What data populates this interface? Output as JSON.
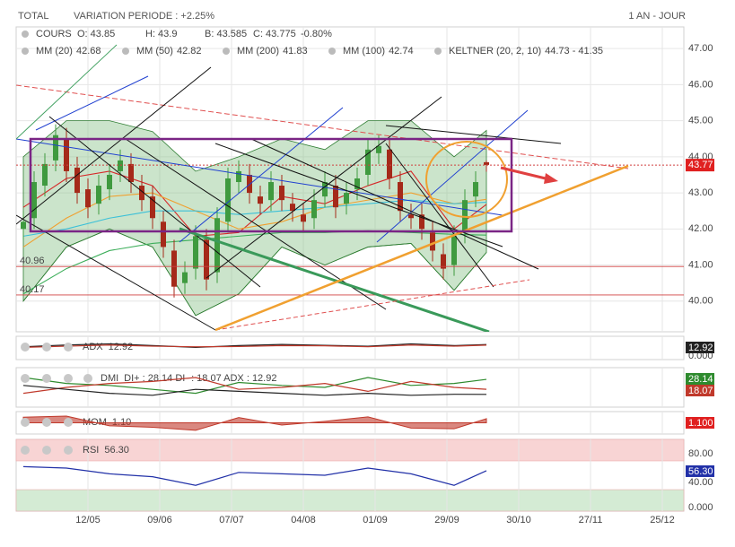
{
  "header": {
    "symbol": "TOTAL",
    "variation": "VARIATION PERIODE : +2.25%",
    "period": "1 AN - JOUR"
  },
  "chart_data": [
    {
      "type": "candlestick",
      "legend": {
        "label": "COURS",
        "open": "O: 43.85",
        "high": "H: 43.9",
        "low": "B: 43.585",
        "close": "C: 43.775",
        "change": "-0.80%"
      },
      "xlim": [
        0,
        186
      ],
      "xticks": [
        {
          "value": 20,
          "label": "12/05"
        },
        {
          "value": 40,
          "label": "09/06"
        },
        {
          "value": 60,
          "label": "07/07"
        },
        {
          "value": 80,
          "label": "04/08"
        },
        {
          "value": 100,
          "label": "01/09"
        },
        {
          "value": 120,
          "label": "29/09"
        },
        {
          "value": 140,
          "label": "30/10"
        },
        {
          "value": 160,
          "label": "27/11"
        },
        {
          "value": 180,
          "label": "25/12"
        }
      ],
      "ylim": [
        39.15,
        47.6
      ],
      "yticks": [
        {
          "value": 40,
          "label": "40.00"
        },
        {
          "value": 41,
          "label": "41.00"
        },
        {
          "value": 42,
          "label": "42.00"
        },
        {
          "value": 43,
          "label": "43.00"
        },
        {
          "value": 44,
          "label": "44.00"
        },
        {
          "value": 45,
          "label": "45.00"
        },
        {
          "value": 46,
          "label": "46.00"
        },
        {
          "value": 47,
          "label": "47.00"
        }
      ],
      "grid": true,
      "up_color": "#3f9a3f",
      "down_color": "#a52a1a",
      "x": [
        2,
        5,
        8,
        11,
        14,
        17,
        20,
        23,
        26,
        29,
        32,
        35,
        38,
        41,
        44,
        47,
        50,
        53,
        56,
        59,
        62,
        65,
        68,
        71,
        74,
        77,
        80,
        83,
        86,
        89,
        92,
        95,
        98,
        101,
        104,
        107,
        110,
        113,
        116,
        119,
        122,
        125,
        128,
        131
      ],
      "open": [
        42.0,
        42.3,
        43.2,
        43.9,
        44.5,
        43.7,
        43.1,
        42.7,
        43.1,
        43.6,
        43.8,
        43.2,
        42.9,
        42.2,
        41.4,
        40.5,
        40.9,
        41.7,
        40.8,
        42.2,
        43.3,
        43.5,
        42.9,
        42.8,
        43.2,
        42.7,
        42.4,
        42.3,
        42.9,
        43.2,
        42.7,
        43.1,
        43.5,
        44.1,
        44.2,
        43.3,
        42.4,
        42.4,
        41.9,
        41.3,
        41.0,
        41.9,
        42.9,
        43.85
      ],
      "high": [
        42.5,
        43.6,
        44.1,
        44.9,
        44.8,
        44.0,
        43.4,
        43.5,
        43.8,
        44.2,
        44.1,
        43.5,
        43.2,
        42.5,
        41.7,
        41.1,
        42.1,
        42.0,
        42.6,
        43.7,
        43.9,
        43.8,
        43.2,
        43.6,
        43.5,
        43.0,
        42.7,
        43.1,
        43.6,
        43.5,
        43.3,
        43.7,
        44.5,
        44.6,
        44.5,
        43.6,
        42.7,
        42.7,
        42.2,
        41.6,
        42.1,
        43.1,
        43.6,
        43.9
      ],
      "low": [
        41.7,
        42.0,
        42.9,
        43.6,
        43.3,
        42.7,
        42.3,
        42.4,
        42.8,
        43.3,
        43.0,
        42.5,
        42.0,
        41.2,
        40.1,
        40.2,
        40.6,
        40.3,
        40.5,
        41.9,
        43.0,
        42.7,
        42.4,
        42.5,
        42.5,
        42.2,
        41.9,
        42.0,
        42.6,
        42.3,
        42.4,
        42.8,
        43.2,
        43.8,
        43.1,
        42.2,
        42.0,
        41.7,
        41.1,
        40.6,
        40.7,
        41.6,
        42.6,
        43.585
      ],
      "close": [
        42.2,
        43.3,
        43.8,
        44.6,
        43.6,
        43.0,
        42.6,
        43.2,
        43.5,
        43.9,
        43.3,
        42.8,
        42.3,
        41.5,
        40.4,
        40.8,
        41.8,
        40.6,
        42.3,
        43.4,
        43.6,
        43.0,
        42.7,
        43.3,
        42.8,
        42.5,
        42.2,
        42.8,
        43.3,
        42.6,
        43.0,
        43.4,
        44.2,
        44.3,
        43.4,
        42.5,
        42.3,
        42.0,
        41.4,
        40.9,
        41.8,
        42.8,
        43.3,
        43.775
      ],
      "overlays": {
        "x": [
          2,
          14,
          26,
          38,
          50,
          62,
          74,
          86,
          98,
          110,
          122,
          131
        ],
        "keltner": {
          "name": "KELTNER (20, 2, 10)",
          "value_label": "44.73 - 41.35",
          "color": "#2e7d32",
          "fill": "#8bc48b",
          "upper": [
            44.0,
            45.0,
            45.0,
            44.7,
            43.6,
            44.0,
            44.5,
            44.2,
            45.0,
            45.0,
            44.0,
            44.73
          ],
          "lower": [
            40.0,
            41.5,
            42.0,
            41.5,
            39.6,
            40.2,
            41.5,
            41.0,
            41.5,
            41.6,
            40.3,
            41.35
          ]
        },
        "series": [
          {
            "name": "MM (20)",
            "value_label": "42.68",
            "color": "#d62728",
            "values": [
              42.6,
              43.4,
              43.6,
              43.2,
              41.8,
              41.9,
              42.9,
              42.7,
              43.2,
              43.6,
              42.0,
              42.68
            ]
          },
          {
            "name": "MM (50)",
            "value_label": "42.82",
            "color": "#f0a030",
            "values": [
              41.5,
              42.3,
              42.9,
              43.0,
              42.5,
              42.0,
              42.2,
              42.6,
              42.8,
              43.0,
              42.7,
              42.82
            ]
          },
          {
            "name": "MM (200)",
            "value_label": "41.83",
            "color": "#3cae5a",
            "values": [
              40.2,
              40.9,
              41.4,
              41.6,
              41.7,
              41.8,
              41.9,
              41.9,
              41.95,
              41.9,
              41.85,
              41.83
            ]
          },
          {
            "name": "MM (100)",
            "value_label": "42.74",
            "color": "#3cc0d8",
            "values": [
              41.8,
              42.0,
              42.3,
              42.5,
              42.5,
              42.4,
              42.5,
              42.6,
              42.7,
              42.8,
              42.7,
              42.74
            ]
          }
        ]
      },
      "levels": [
        {
          "value": 40.96,
          "label": "40.96"
        },
        {
          "value": 40.17,
          "label": "40.17"
        }
      ],
      "last": {
        "value": 43.77,
        "label": "43.77"
      }
    },
    {
      "type": "line",
      "title": "ADX",
      "value_label": "12.92",
      "ylim": [
        0,
        20
      ],
      "yticks": [
        {
          "value": 0,
          "label": "0.000"
        }
      ],
      "x": [
        2,
        14,
        26,
        38,
        50,
        62,
        74,
        86,
        98,
        110,
        122,
        131
      ],
      "series": [
        {
          "name": "ADX",
          "color": "#222222",
          "box": "12.92",
          "values": [
            11,
            12.5,
            13.5,
            12,
            10.5,
            12,
            13,
            12.2,
            11.5,
            13.5,
            12,
            12.92
          ]
        },
        {
          "name": "ADX-",
          "color": "#c0392b",
          "values": [
            10.5,
            11.5,
            12.5,
            11.5,
            11,
            11.2,
            12,
            11.8,
            11,
            12.5,
            11.5,
            12.4
          ]
        }
      ]
    },
    {
      "type": "line",
      "title": "DMI",
      "value_label": "DI+ : 28.14  DI- : 18.07  ADX : 12.92",
      "ylim": [
        0,
        40
      ],
      "x": [
        2,
        14,
        26,
        38,
        50,
        62,
        74,
        86,
        98,
        110,
        122,
        131
      ],
      "series": [
        {
          "name": "DI+",
          "color": "#2e8b2e",
          "box": "28.14",
          "values": [
            30,
            24,
            22,
            18,
            14,
            25,
            22,
            20,
            30,
            22,
            24,
            28.14
          ]
        },
        {
          "name": "DI-",
          "color": "#c0392b",
          "box": "18.07",
          "values": [
            14,
            20,
            24,
            26,
            30,
            18,
            20,
            24,
            16,
            26,
            20,
            18.07
          ]
        },
        {
          "name": "ADX",
          "color": "#222222",
          "values": [
            22,
            18,
            14,
            12,
            18,
            16,
            14,
            12,
            14,
            12,
            13,
            12.92
          ]
        }
      ]
    },
    {
      "type": "area",
      "title": "MOM",
      "value_label": "1.10",
      "ylim": [
        -3,
        3
      ],
      "box": "1.100",
      "color": "#c0392b",
      "x": [
        2,
        14,
        26,
        38,
        50,
        62,
        74,
        86,
        98,
        110,
        122,
        131
      ],
      "values": [
        1.5,
        1.8,
        -0.8,
        -1.2,
        -2.0,
        1.4,
        -0.6,
        0.4,
        1.6,
        -1.4,
        -1.6,
        1.1
      ]
    },
    {
      "type": "line",
      "title": "RSI",
      "value_label": "56.30",
      "ylim": [
        0,
        100
      ],
      "box": "56.30",
      "color": "#2231a8",
      "zones": [
        {
          "from": 70,
          "to": 100,
          "color": "#f8d4d4"
        },
        {
          "from": 0,
          "to": 30,
          "color": "#d4ebd4"
        }
      ],
      "yticks": [
        {
          "value": 0,
          "label": "0.000"
        },
        {
          "value": 40,
          "label": "40.00"
        },
        {
          "value": 80,
          "label": "80.00"
        }
      ],
      "x": [
        2,
        14,
        26,
        38,
        50,
        62,
        74,
        86,
        98,
        110,
        122,
        131
      ],
      "values": [
        62,
        60,
        52,
        48,
        36,
        54,
        52,
        50,
        60,
        52,
        36,
        56.3
      ]
    }
  ]
}
